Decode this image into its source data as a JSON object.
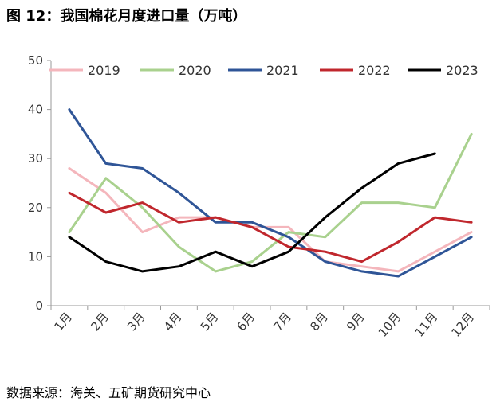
{
  "title": "图 12：我国棉花月度进口量（万吨）",
  "source": "数据来源：海关、五矿期货研究中心",
  "chart_data": {
    "type": "line",
    "categories": [
      "1月",
      "2月",
      "3月",
      "4月",
      "5月",
      "6月",
      "7月",
      "8月",
      "9月",
      "10月",
      "11月",
      "12月"
    ],
    "ylim": [
      0,
      50
    ],
    "yticks": [
      0,
      10,
      20,
      30,
      40,
      50
    ],
    "grid": false,
    "legend_position": "top",
    "series": [
      {
        "name": "2019",
        "color": "#f4b6bc",
        "values": [
          28,
          23,
          15,
          18,
          18,
          16,
          16,
          9,
          8,
          7,
          11,
          15
        ]
      },
      {
        "name": "2020",
        "color": "#a9d18e",
        "values": [
          15,
          26,
          20,
          12,
          7,
          9,
          15,
          14,
          21,
          21,
          20,
          35
        ]
      },
      {
        "name": "2021",
        "color": "#2f5597",
        "values": [
          40,
          29,
          28,
          23,
          17,
          17,
          14,
          9,
          7,
          6,
          10,
          14
        ]
      },
      {
        "name": "2022",
        "color": "#c0272d",
        "values": [
          23,
          19,
          21,
          17,
          18,
          16,
          12,
          11,
          9,
          13,
          18,
          17
        ]
      },
      {
        "name": "2023",
        "color": "#000000",
        "values": [
          14,
          9,
          7,
          8,
          11,
          8,
          11,
          18,
          24,
          29,
          31,
          null
        ]
      }
    ]
  }
}
